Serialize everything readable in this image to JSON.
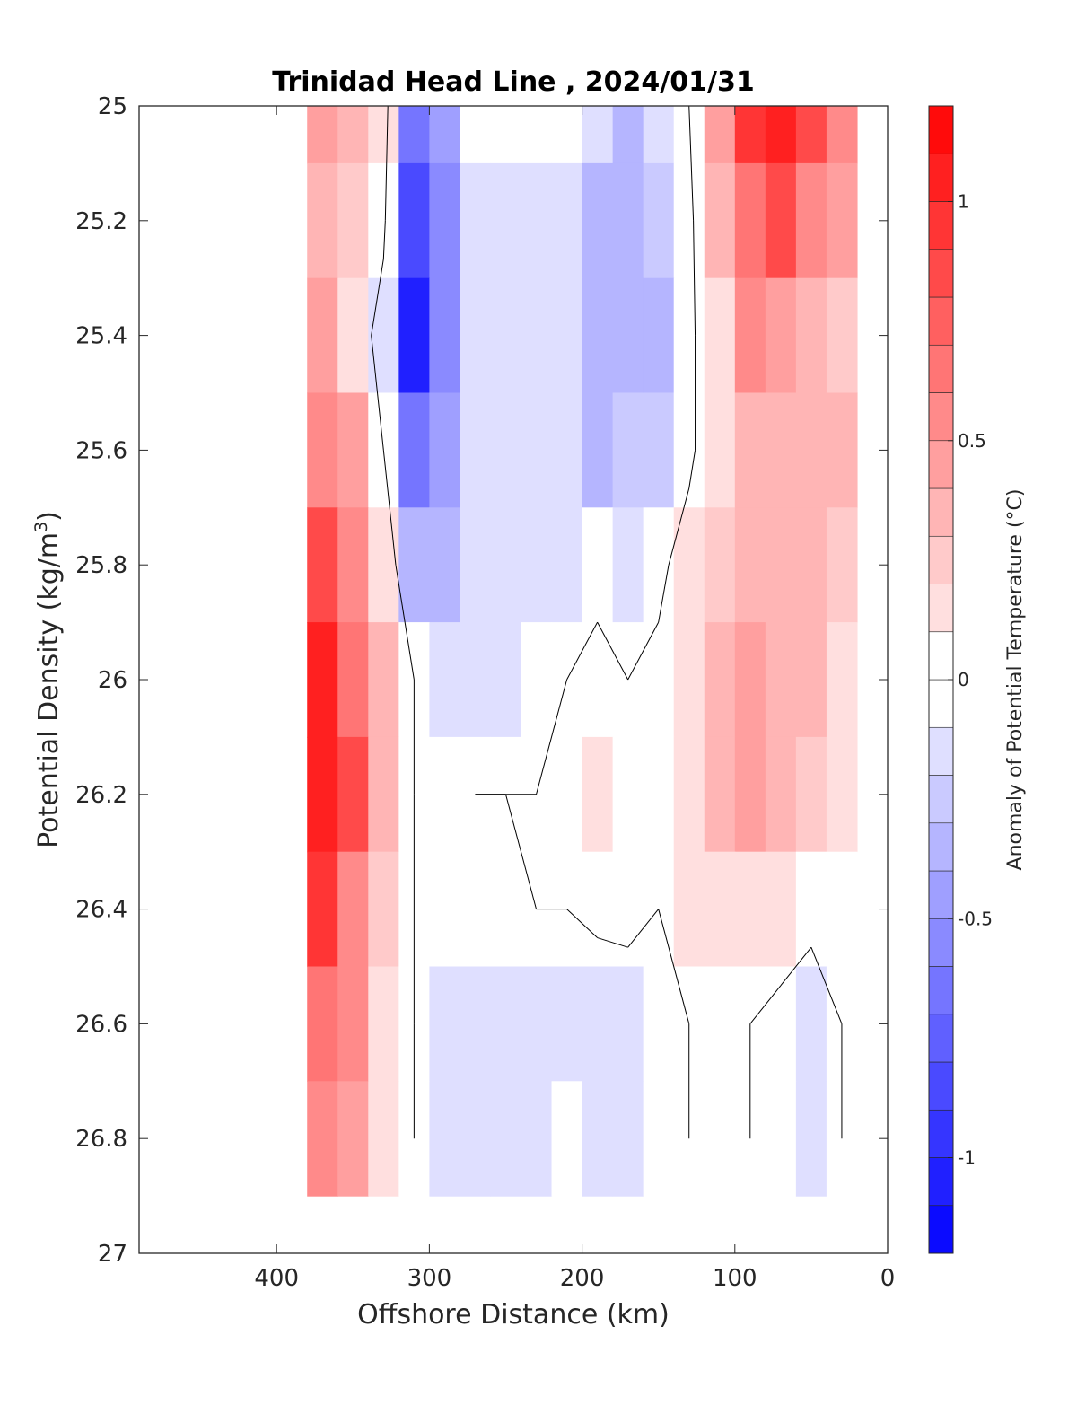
{
  "chart_data": {
    "type": "heatmap",
    "title": "Trinidad Head Line , 2024/01/31",
    "xlabel": "Offshore Distance (km)",
    "ylabel_main": "Potential Density (kg/m",
    "ylabel_sup": "3",
    "ylabel_close": ")",
    "colorbar_label": "Anomaly of Potential Temperature (°C)",
    "x_axis": {
      "min": 490,
      "max": 0,
      "reversed": true,
      "ticks": [
        400,
        300,
        200,
        100,
        0
      ],
      "tick_labels": [
        "400",
        "300",
        "200",
        "100",
        "0"
      ]
    },
    "y_axis": {
      "min": 25,
      "max": 27,
      "reversed": true,
      "ticks": [
        25,
        25.2,
        25.4,
        25.6,
        25.8,
        26,
        26.2,
        26.4,
        26.6,
        26.8,
        27
      ],
      "tick_labels": [
        "25",
        "25.2",
        "25.4",
        "25.6",
        "25.8",
        "26",
        "26.2",
        "26.4",
        "26.6",
        "26.8",
        "27"
      ]
    },
    "colorbar": {
      "min": -1.2,
      "max": 1.2,
      "step": 0.1,
      "ticks": [
        1,
        0.5,
        0,
        -0.5,
        -1
      ],
      "tick_labels": [
        "1",
        "0.5",
        "0",
        "-0.5",
        "-1"
      ],
      "low_color": "#0000ff",
      "mid_color": "#ffffff",
      "high_color": "#ff0000"
    },
    "contour_level": 0,
    "data_grid": {
      "x": [
        370,
        350,
        330,
        310,
        290,
        270,
        250,
        230,
        210,
        190,
        170,
        150,
        130,
        110,
        90,
        70,
        50,
        30
      ],
      "y": [
        25.0,
        25.2,
        25.4,
        25.6,
        25.8,
        26.0,
        26.2,
        26.4,
        26.6,
        26.8
      ],
      "anomaly": [
        [
          0.4,
          0.3,
          0.1,
          -0.6,
          -0.4,
          0.0,
          -0.05,
          -0.05,
          0.0,
          -0.2,
          -0.3,
          -0.2,
          0.0,
          0.4,
          0.9,
          1.1,
          0.8,
          0.5
        ],
        [
          0.35,
          0.25,
          0.05,
          -0.8,
          -0.5,
          -0.1,
          -0.1,
          -0.1,
          -0.1,
          -0.3,
          -0.35,
          -0.25,
          -0.05,
          0.3,
          0.7,
          0.8,
          0.6,
          0.4
        ],
        [
          0.4,
          0.15,
          -0.1,
          -1.0,
          -0.55,
          -0.15,
          -0.15,
          -0.15,
          -0.15,
          -0.35,
          -0.35,
          -0.3,
          -0.05,
          0.2,
          0.5,
          0.4,
          0.3,
          0.25
        ],
        [
          0.6,
          0.4,
          0.0,
          -0.7,
          -0.45,
          -0.15,
          -0.15,
          -0.1,
          -0.15,
          -0.3,
          -0.25,
          -0.25,
          -0.05,
          0.2,
          0.3,
          0.3,
          0.35,
          0.3
        ],
        [
          0.8,
          0.6,
          0.2,
          -0.3,
          -0.3,
          -0.1,
          -0.1,
          -0.1,
          -0.1,
          -0.05,
          -0.1,
          -0.05,
          0.1,
          0.25,
          0.3,
          0.3,
          0.3,
          0.25
        ],
        [
          1.0,
          0.7,
          0.3,
          0.0,
          -0.15,
          -0.1,
          -0.1,
          -0.05,
          0.0,
          0.05,
          0.0,
          0.05,
          0.2,
          0.35,
          0.4,
          0.35,
          0.3,
          0.2
        ],
        [
          1.05,
          0.8,
          0.3,
          0.0,
          -0.05,
          0.0,
          0.0,
          0.0,
          0.05,
          0.1,
          0.05,
          0.05,
          0.2,
          0.3,
          0.4,
          0.35,
          0.25,
          0.15
        ],
        [
          0.9,
          0.6,
          0.25,
          0.0,
          -0.05,
          -0.05,
          -0.05,
          0.0,
          0.0,
          0.05,
          0.05,
          0.0,
          0.1,
          0.15,
          0.15,
          0.1,
          0.05,
          0.0
        ],
        [
          0.7,
          0.5,
          0.2,
          0.0,
          -0.1,
          -0.15,
          -0.2,
          -0.15,
          -0.1,
          -0.15,
          -0.1,
          -0.05,
          0.0,
          0.0,
          0.0,
          -0.05,
          -0.1,
          0.0
        ],
        [
          0.6,
          0.4,
          0.1,
          0.0,
          -0.1,
          -0.1,
          -0.15,
          -0.1,
          -0.05,
          -0.1,
          -0.1,
          -0.05,
          0.0,
          0.0,
          0.0,
          -0.05,
          -0.1,
          0.0
        ]
      ]
    }
  }
}
